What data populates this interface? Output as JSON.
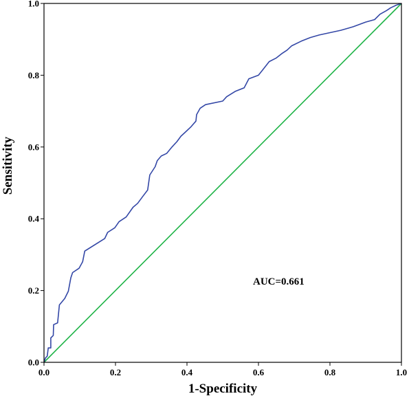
{
  "chart_data": {
    "type": "line",
    "title": "",
    "xlabel": "1-Specificity",
    "ylabel": "Sensitivity",
    "xlim": [
      0,
      1
    ],
    "ylim": [
      0,
      1
    ],
    "x_ticks": [
      "0.0",
      "0.2",
      "0.4",
      "0.6",
      "0.8",
      "1.0"
    ],
    "y_ticks": [
      "0.0",
      "0.2",
      "0.4",
      "0.6",
      "0.8",
      "1.0"
    ],
    "grid": false,
    "legend": "none",
    "annotation": "AUC=0.661",
    "series": [
      {
        "color": "#3347a6",
        "points": [
          [
            0.0,
            0.0
          ],
          [
            0.004,
            0.012
          ],
          [
            0.009,
            0.017
          ],
          [
            0.012,
            0.04
          ],
          [
            0.019,
            0.04
          ],
          [
            0.019,
            0.068
          ],
          [
            0.026,
            0.075
          ],
          [
            0.027,
            0.105
          ],
          [
            0.038,
            0.11
          ],
          [
            0.043,
            0.16
          ],
          [
            0.058,
            0.178
          ],
          [
            0.068,
            0.198
          ],
          [
            0.075,
            0.235
          ],
          [
            0.08,
            0.25
          ],
          [
            0.098,
            0.262
          ],
          [
            0.108,
            0.28
          ],
          [
            0.114,
            0.31
          ],
          [
            0.17,
            0.345
          ],
          [
            0.178,
            0.362
          ],
          [
            0.198,
            0.375
          ],
          [
            0.21,
            0.392
          ],
          [
            0.23,
            0.405
          ],
          [
            0.249,
            0.432
          ],
          [
            0.262,
            0.443
          ],
          [
            0.277,
            0.463
          ],
          [
            0.29,
            0.48
          ],
          [
            0.296,
            0.522
          ],
          [
            0.311,
            0.545
          ],
          [
            0.317,
            0.562
          ],
          [
            0.328,
            0.575
          ],
          [
            0.343,
            0.582
          ],
          [
            0.358,
            0.6
          ],
          [
            0.372,
            0.615
          ],
          [
            0.383,
            0.63
          ],
          [
            0.394,
            0.64
          ],
          [
            0.41,
            0.655
          ],
          [
            0.425,
            0.672
          ],
          [
            0.427,
            0.69
          ],
          [
            0.437,
            0.708
          ],
          [
            0.452,
            0.718
          ],
          [
            0.5,
            0.728
          ],
          [
            0.511,
            0.74
          ],
          [
            0.535,
            0.755
          ],
          [
            0.56,
            0.765
          ],
          [
            0.573,
            0.79
          ],
          [
            0.6,
            0.8
          ],
          [
            0.612,
            0.815
          ],
          [
            0.63,
            0.838
          ],
          [
            0.65,
            0.848
          ],
          [
            0.665,
            0.86
          ],
          [
            0.68,
            0.87
          ],
          [
            0.693,
            0.882
          ],
          [
            0.72,
            0.895
          ],
          [
            0.745,
            0.905
          ],
          [
            0.77,
            0.912
          ],
          [
            0.83,
            0.925
          ],
          [
            0.865,
            0.935
          ],
          [
            0.9,
            0.948
          ],
          [
            0.925,
            0.955
          ],
          [
            0.94,
            0.97
          ],
          [
            0.958,
            0.98
          ],
          [
            0.97,
            0.988
          ],
          [
            0.985,
            0.995
          ],
          [
            1.0,
            1.0
          ]
        ]
      },
      {
        "color": "#1db346",
        "points": [
          [
            0,
            0
          ],
          [
            1,
            1
          ]
        ]
      }
    ]
  }
}
